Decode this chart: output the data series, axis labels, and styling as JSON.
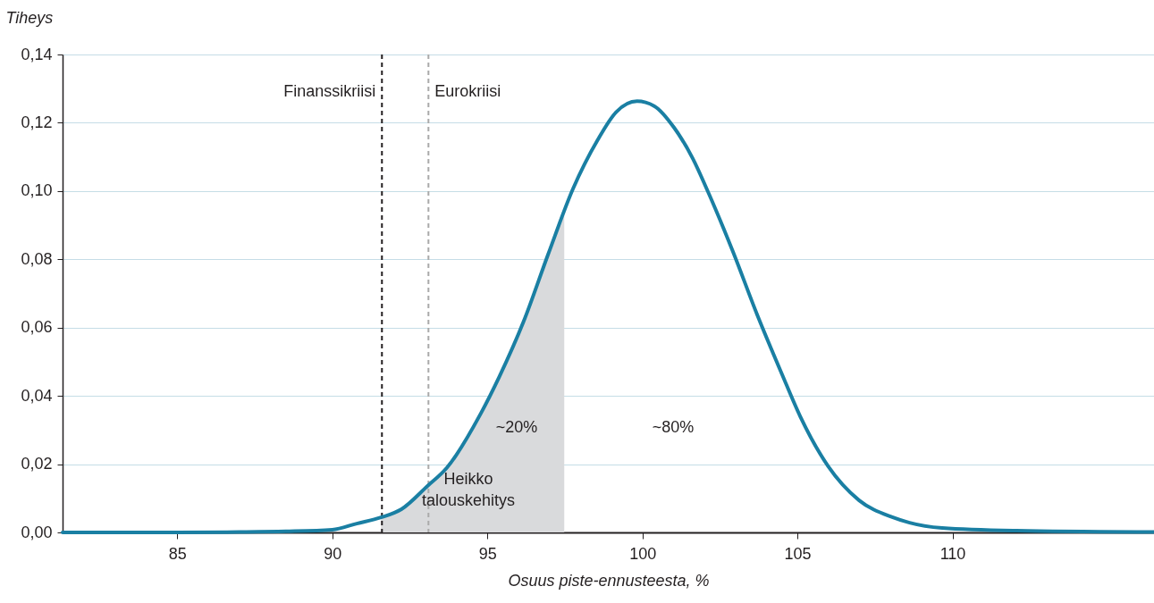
{
  "chart_data": {
    "type": "line",
    "xlabel": "Osuus piste-ennusteesta, %",
    "ylabel": "Tiheys",
    "xlim": [
      81.3,
      116.5
    ],
    "ylim": [
      0,
      0.14
    ],
    "xticks": [
      85,
      90,
      95,
      100,
      105,
      110
    ],
    "yticks": [
      {
        "value": 0,
        "label": "0,00"
      },
      {
        "value": 0.02,
        "label": "0,02"
      },
      {
        "value": 0.04,
        "label": "0,04"
      },
      {
        "value": 0.06,
        "label": "0,06"
      },
      {
        "value": 0.08,
        "label": "0,08"
      },
      {
        "value": 0.1,
        "label": "0,10"
      },
      {
        "value": 0.12,
        "label": "0,12"
      },
      {
        "value": 0.14,
        "label": "0,14"
      }
    ],
    "grid": "y",
    "marker": "none",
    "series": [
      {
        "type": "area",
        "color": "#d9dadc",
        "x": [
          91.57,
          92.23,
          93.07,
          93.69,
          94.78,
          95.38,
          96.17,
          96.97,
          97.48
        ],
        "values": [
          0.0044,
          0.0068,
          0.0136,
          0.0189,
          0.0347,
          0.0455,
          0.0618,
          0.0817,
          0.093
        ]
      },
      {
        "color": "#1a7fa3",
        "line_style": "solid",
        "x": [
          81.3,
          85,
          87,
          88.5,
          90,
          90.79,
          91.57,
          92.23,
          93.07,
          93.69,
          94.78,
          95.38,
          96.17,
          96.97,
          97.76,
          98.56,
          99.15,
          99.83,
          100.38,
          101.02,
          101.62,
          102.12,
          102.91,
          103.71,
          104.5,
          105.1,
          105.99,
          106.99,
          108.08,
          109.67,
          112.06,
          116.5
        ],
        "values": [
          0,
          0,
          0.0001,
          0.0003,
          0.0008,
          0.0026,
          0.0044,
          0.0068,
          0.0136,
          0.0189,
          0.0347,
          0.0455,
          0.0618,
          0.0817,
          0.1006,
          0.115,
          0.1231,
          0.1263,
          0.1249,
          0.1186,
          0.1096,
          0.0997,
          0.0825,
          0.0636,
          0.0464,
          0.0338,
          0.0194,
          0.0094,
          0.0044,
          0.0013,
          0.0005,
          0.0001
        ]
      }
    ],
    "ref_lines": [
      {
        "axis": "x",
        "value": 91.6,
        "label": "Finanssikriisi",
        "color": "#231f20",
        "line_style": "dashed"
      },
      {
        "axis": "x",
        "value": 93.1,
        "label": "Eurokriisi",
        "color": "#aaaaaa",
        "line_style": "dashed"
      }
    ],
    "annotations": [
      "~20%",
      "~80%",
      "Heikko\ntalouskehitys"
    ]
  }
}
